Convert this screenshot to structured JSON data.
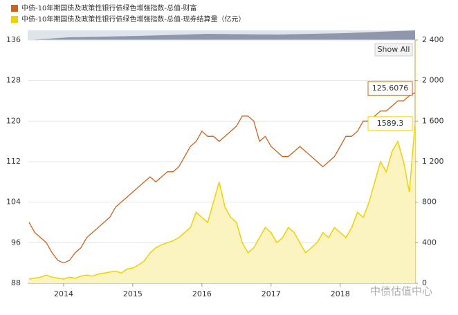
{
  "chart_data": {
    "type": "combo",
    "categories": [
      null,
      null,
      null,
      null,
      null,
      null,
      "2014",
      null,
      null,
      null,
      null,
      null,
      null,
      null,
      null,
      null,
      null,
      null,
      "2015",
      null,
      null,
      null,
      null,
      null,
      null,
      null,
      null,
      null,
      null,
      null,
      "2016",
      null,
      null,
      null,
      null,
      null,
      null,
      null,
      null,
      null,
      null,
      null,
      "2017",
      null,
      null,
      null,
      null,
      null,
      null,
      null,
      null,
      null,
      null,
      null,
      "2018",
      null,
      null,
      null,
      null,
      null,
      null,
      null,
      null,
      null,
      null,
      null,
      null,
      null
    ],
    "series": [
      {
        "name": "中债-10年期国债及政策性银行债绿色增强指数-总值-财富",
        "type": "line",
        "color": "#c8641e",
        "values": [
          100,
          98,
          97,
          96,
          94,
          92.5,
          92,
          92.5,
          94,
          95,
          97,
          98,
          99,
          100,
          101,
          103,
          104,
          105,
          106,
          107,
          108,
          109,
          108,
          109,
          110,
          110,
          111,
          113,
          115,
          116,
          118,
          117,
          117,
          116,
          117,
          118,
          119,
          121,
          121,
          120,
          116,
          117,
          115,
          114,
          113,
          113,
          114,
          115,
          114,
          113,
          112,
          111,
          112,
          113,
          115,
          117,
          117,
          118,
          120,
          120,
          121,
          122,
          122,
          123,
          124,
          124,
          125,
          125.6076
        ]
      },
      {
        "name": "中债-10年期国债及政策性银行债绿色增强指数-总值-现券结算量（亿元）",
        "type": "area",
        "axis": "y2",
        "color": "#f0d000",
        "values": [
          40,
          50,
          60,
          80,
          60,
          50,
          40,
          60,
          50,
          70,
          80,
          70,
          90,
          100,
          110,
          120,
          100,
          140,
          150,
          180,
          220,
          300,
          350,
          380,
          400,
          420,
          450,
          500,
          550,
          700,
          650,
          600,
          800,
          1000,
          750,
          650,
          600,
          400,
          300,
          350,
          450,
          550,
          500,
          400,
          450,
          550,
          500,
          400,
          300,
          350,
          400,
          500,
          450,
          550,
          500,
          450,
          550,
          700,
          650,
          800,
          1000,
          1200,
          1100,
          1300,
          1400,
          1200,
          900,
          1589.3
        ]
      }
    ],
    "ylim": [
      88,
      136
    ],
    "yticks": [
      88,
      96,
      104,
      112,
      120,
      128,
      136
    ],
    "y2lim": [
      0,
      2400
    ],
    "y2ticks": [
      0,
      400,
      800,
      {
        "value": 1200,
        "label": "1 200"
      },
      {
        "value": 1600,
        "label": "1 600"
      },
      {
        "value": 2000,
        "label": "2 000"
      },
      {
        "value": 2400,
        "label": "2 400"
      }
    ],
    "grid": true,
    "button": "Show All",
    "watermark": "中债估值中心"
  }
}
